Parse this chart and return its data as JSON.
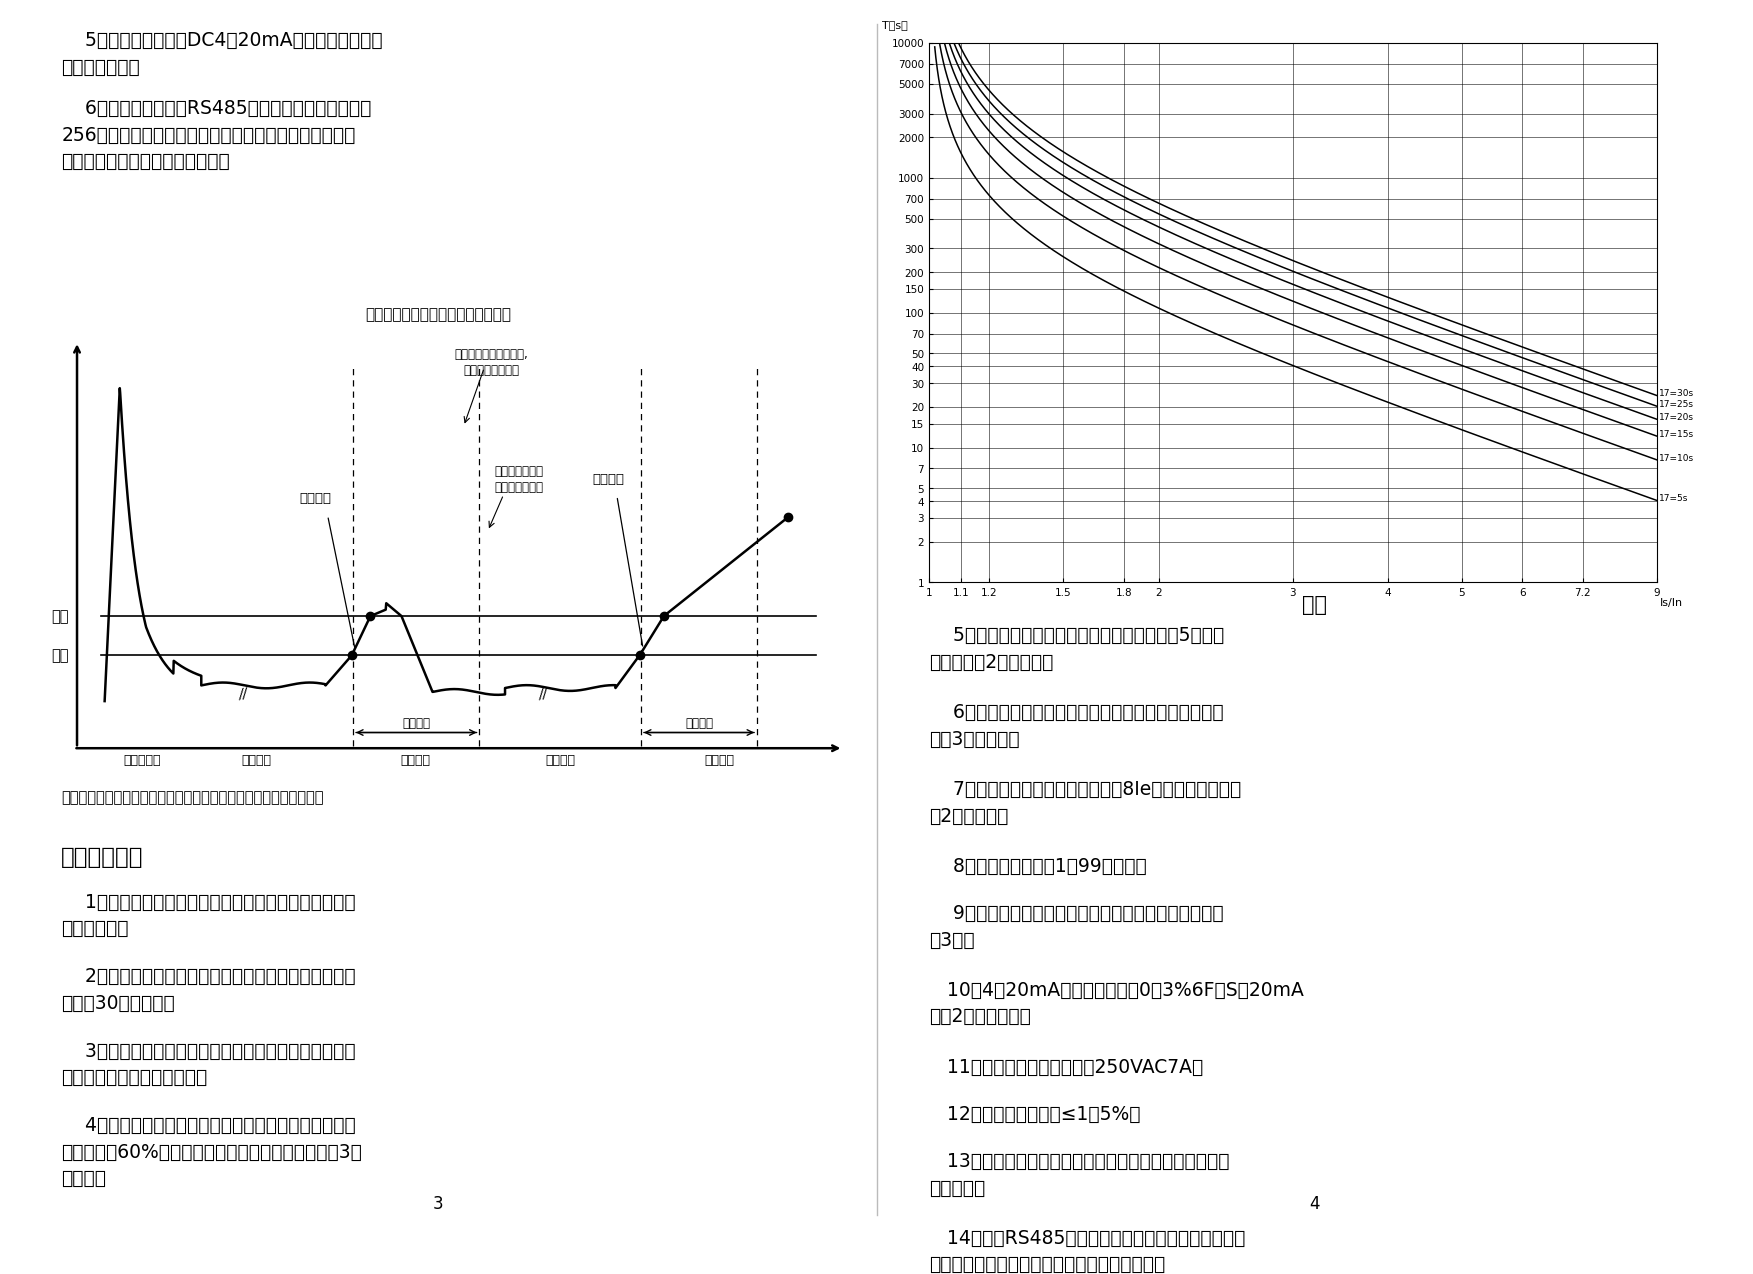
{
  "bg_color": "#ffffff",
  "left_para1": "    5、远传功能：具有DC4－20mA标准模拟量输出，\n不需外接电源。",
  "left_para2": "    6、通讯功能：通过RS485串行通讯与计算机可构成\n256台保护器常规保护控制网络。远程数据设定及显示报\n警，远程电动机启动停止控制等。",
  "fig1_title": "电动机预警、脱扣延时、脱扣示意图",
  "ann_top_right": "超延时时限脱扣动作后,\n电动机断开电源。",
  "ann_warn1": "预警发出",
  "ann_no_trip": "不超限延时脱扣\n电动机保持运转",
  "ann_warn2": "预警发出",
  "trip_label": "脱扣",
  "warn_label": "预警",
  "delay_label": "脱扣延时",
  "phase_labels": [
    "电动机启动",
    "正常运行",
    "暂时故障",
    "正常运行",
    "连续故障"
  ],
  "fig1_caption": "图一：依据电动机制造商的规范和过程控制要求设置预警和脱扣参数",
  "sec5_title": "五、技术参数",
  "sec5_items": [
    "    1、反时限保护：本保护装置具有过流反时限延时保护\n功能如图二。",
    "    2、轻载保护：当电流值小于轻载保护设定值时，保护\n装置在30秒内动作。",
    "    3、过流保护：保护电流可任意设定，电流值大于设定\n值时，按动作特性曲线动作。",
    "    4、断相保护：电动机电源断相时（出产时三相电流不\n平衡值设为60%可根据用户要求设定），保护装置在3秒\n内动作。"
  ],
  "fig2_title": "图二",
  "fig2_ylabel": "T（s）",
  "fig2_xlabel": "Is/In",
  "curve_tr_values": [
    5,
    10,
    15,
    20,
    25,
    30
  ],
  "curve_labels": [
    "17=5s",
    "17=10s",
    "17=15s",
    "17=20s",
    "17=25s",
    "17=30s"
  ],
  "x_tick_vals": [
    1,
    1.1,
    1.2,
    1.5,
    1.8,
    2,
    3,
    4,
    5,
    6,
    7.2,
    9
  ],
  "x_tick_labels": [
    "1",
    "1.1",
    "1.2",
    "1.5",
    "1.8",
    "2",
    "3",
    "4",
    "5",
    "6",
    "7.2",
    "9"
  ],
  "y_tick_vals": [
    1,
    2,
    3,
    4,
    5,
    7,
    10,
    15,
    20,
    30,
    40,
    50,
    70,
    100,
    150,
    200,
    300,
    500,
    700,
    1000,
    2000,
    3000,
    5000,
    7000,
    10000
  ],
  "y_tick_labels": [
    "1",
    "2",
    "3",
    "4",
    "5",
    "7",
    "10",
    "15",
    "20",
    "30",
    "40",
    "50",
    "70",
    "100",
    "150",
    "200",
    "300",
    "500",
    "700",
    "1000",
    "2000",
    "3000",
    "5000",
    "7000",
    "10000"
  ],
  "right_items": [
    "    5、堵转保护：当电动机运行电流大于设定值5倍时，\n保护装置在2秒内动作。",
    "    6、漏电（接地）保护：漏电电流大于设定值时保护装\n置在3秒内动作。",
    "    7、短路保护：任意一相电流达到8Ie电流时，保护装置\n在2秒内动作。",
    "    8、启动延时时间：1－99秒可调。",
    "    9、星三角转换时间：星三角转换时间小于启动延时时\n间3秒。",
    "   10、4－20mA电流输出精度：0．3%6F．S（20mA\n对应2倍的额定值）",
    "   11、输出继电器触头容量：250VAC7A。",
    "   12、电流显示误差：≤1．5%。",
    "   13、具有启动延时功能：避开启动大电流和过电流动作\n时间分开。",
    "   14、具有RS485远程通信接口，能有远程数据设定、\n控制查询等，与上位机组成网络保护监控系统。"
  ],
  "page_num_left": "3",
  "page_num_right": "4"
}
